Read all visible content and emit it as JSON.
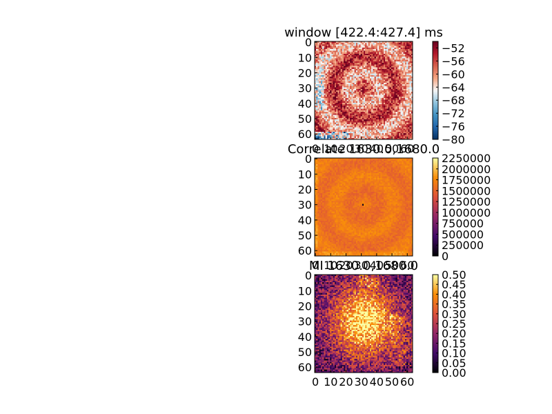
{
  "figure": {
    "background": "#ffffff"
  },
  "chart_data": [
    {
      "type": "heatmap",
      "title": "window [422.4:427.4] ms",
      "grid_size": 64,
      "x_ticks": [
        "0",
        "10",
        "20",
        "30",
        "40",
        "50",
        "60"
      ],
      "y_ticks": [
        "0",
        "10",
        "20",
        "30",
        "40",
        "50",
        "60"
      ],
      "colormap": "RdBu_r (diverging)",
      "colors": [
        "#053061",
        "#2166ac",
        "#4393c3",
        "#92c5de",
        "#f7f7f7",
        "#f4a582",
        "#d6604d",
        "#b2182b",
        "#67001f"
      ],
      "colorbar": {
        "min": -80,
        "max": -50,
        "ticks": [
          "−52",
          "−56",
          "−60",
          "−64",
          "−68",
          "−72",
          "−76",
          "−80"
        ],
        "tick_values": [
          -52,
          -56,
          -60,
          -64,
          -68,
          -72,
          -76,
          -80
        ]
      },
      "description": "Mostly red values around -56 to -60 with darker red ring structure; pale/blue patches at bottom-left corner"
    },
    {
      "type": "heatmap",
      "title": "Correlate 1630.0,1680.0",
      "grid_size": 64,
      "x_ticks": [
        "0",
        "10",
        "20",
        "30",
        "40",
        "50",
        "60"
      ],
      "y_ticks": [
        "0",
        "10",
        "20",
        "30",
        "40",
        "50",
        "60"
      ],
      "colormap": "inferno-like",
      "colors": [
        "#000004",
        "#420a68",
        "#932667",
        "#dd513a",
        "#f98e09",
        "#fcffa4"
      ],
      "colorbar": {
        "min": 0,
        "max": 2250000,
        "ticks": [
          "2250000",
          "2000000",
          "1750000",
          "1500000",
          "1250000",
          "1000000",
          "750000",
          "500000",
          "250000",
          "0"
        ],
        "tick_values": [
          2250000,
          2000000,
          1750000,
          1500000,
          1250000,
          1000000,
          750000,
          500000,
          250000,
          0
        ]
      },
      "description": "Nearly uniform orange (~1,600,000) with faint ring texture; one dark pixel near center"
    },
    {
      "type": "heatmap",
      "title": "MI 1630.0,1680.0",
      "grid_size": 64,
      "x_ticks": [
        "0",
        "10",
        "20",
        "30",
        "40",
        "50",
        "60"
      ],
      "y_ticks": [
        "0",
        "10",
        "20",
        "30",
        "40",
        "50",
        "60"
      ],
      "colormap": "inferno-like",
      "colors": [
        "#000004",
        "#420a68",
        "#932667",
        "#dd513a",
        "#f98e09",
        "#fcffa4"
      ],
      "colorbar": {
        "min": 0.0,
        "max": 0.5,
        "ticks": [
          "0.50",
          "0.45",
          "0.40",
          "0.35",
          "0.30",
          "0.25",
          "0.20",
          "0.15",
          "0.10",
          "0.05",
          "0.00"
        ],
        "tick_values": [
          0.5,
          0.45,
          0.4,
          0.35,
          0.3,
          0.25,
          0.2,
          0.15,
          0.1,
          0.05,
          0.0
        ]
      },
      "description": "Bright yellow (~0.45) central blob, purple (~0.15) background at edges"
    }
  ]
}
